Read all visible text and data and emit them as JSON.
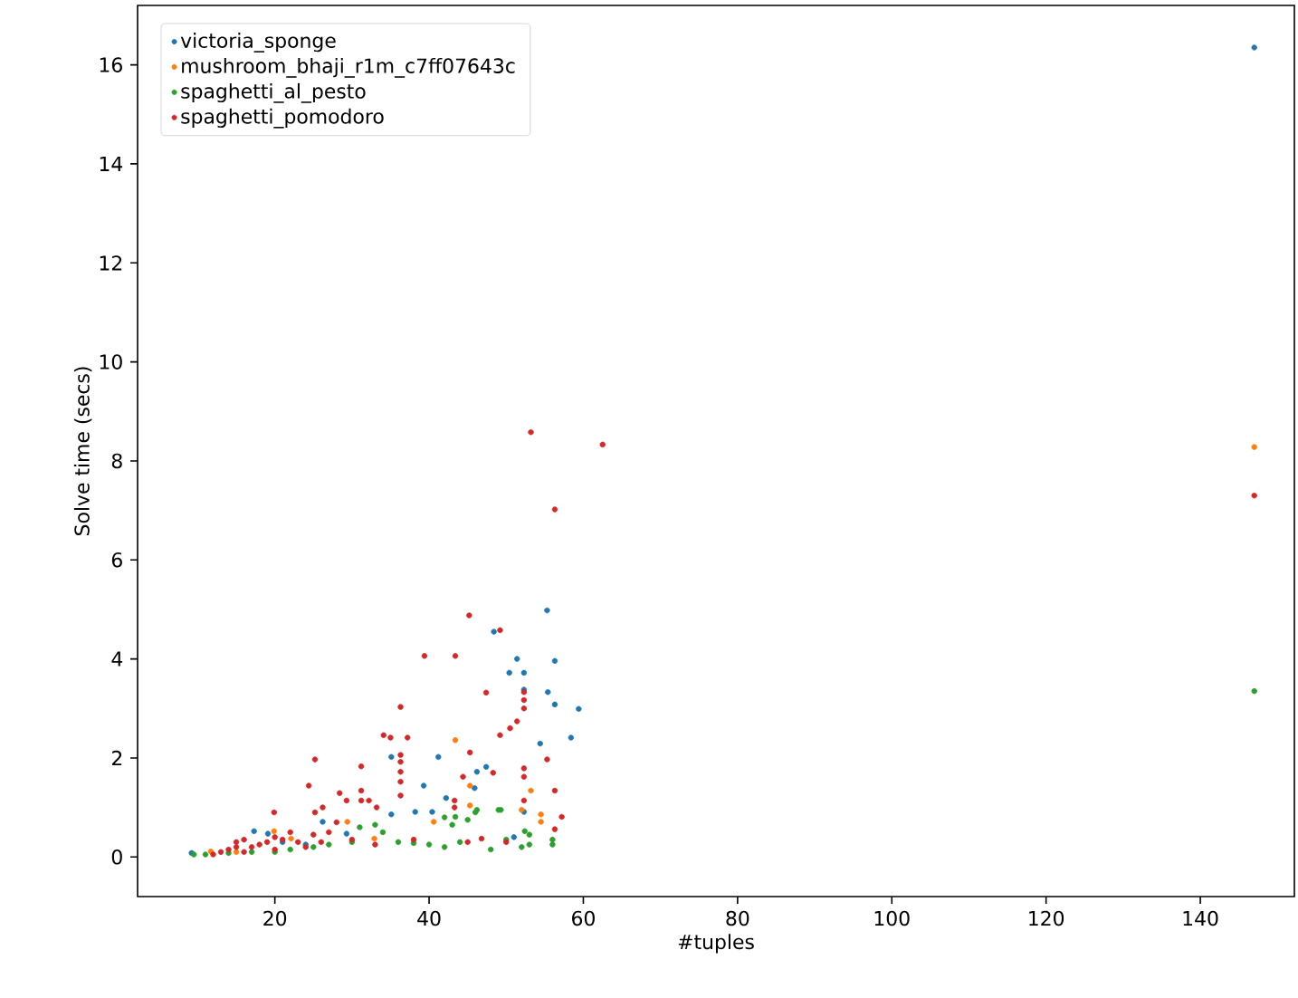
{
  "chart_data": {
    "type": "scatter",
    "xlabel": "#tuples",
    "ylabel": "Solve time (secs)",
    "xlim": [
      2.2,
      152.2
    ],
    "ylim": [
      -0.8,
      17.2
    ],
    "xticks": [
      20,
      40,
      60,
      80,
      100,
      120,
      140
    ],
    "yticks": [
      0,
      2,
      4,
      6,
      8,
      10,
      12,
      14,
      16
    ],
    "grid": false,
    "legend": "top left",
    "marker": "circle",
    "series": [
      {
        "name": "victoria_sponge",
        "color": "#1f77b4",
        "x": [
          147,
          55.3,
          48.4,
          51.4,
          56.3,
          50.4,
          52.3,
          52.3,
          55.4,
          56.3,
          59.4,
          58.4,
          54.4,
          41.2,
          35.1,
          47.4,
          46.2,
          39.3,
          45.9,
          42.2,
          35.1,
          40.4,
          38.2,
          52.3,
          26.2,
          17.3,
          19.1,
          29.3,
          9.2,
          21,
          24,
          51
        ],
        "values": [
          16.35,
          4.98,
          4.55,
          4.0,
          3.96,
          3.72,
          3.72,
          3.38,
          3.33,
          3.08,
          2.99,
          2.41,
          2.29,
          2.02,
          2.02,
          1.82,
          1.72,
          1.44,
          1.39,
          1.19,
          0.86,
          0.91,
          0.91,
          0.91,
          0.71,
          0.52,
          0.47,
          0.47,
          0.08,
          0.3,
          0.25,
          0.4
        ]
      },
      {
        "name": "mushroom_bhaji_r1m_c7ff07643c",
        "color": "#ff7f0e",
        "x": [
          147,
          43.4,
          45.3,
          53.2,
          54.5,
          54.5,
          45.3,
          29.4,
          19.9,
          22.1,
          32.9,
          11.7,
          40.6,
          15,
          52
        ],
        "values": [
          8.28,
          2.36,
          1.44,
          1.34,
          0.86,
          0.71,
          1.04,
          0.71,
          0.52,
          0.37,
          0.37,
          0.11,
          0.71,
          0.1,
          0.95
        ]
      },
      {
        "name": "spaghetti_al_pesto",
        "color": "#2ca02c",
        "x": [
          147,
          9.5,
          11,
          14,
          17,
          20,
          22,
          25,
          27,
          30,
          31,
          33,
          34,
          36,
          38,
          40,
          42,
          42,
          43,
          44,
          45,
          46,
          48,
          49,
          50,
          52,
          53,
          53,
          56,
          56,
          49.3,
          46.2,
          43.4,
          52.4
        ],
        "values": [
          3.35,
          0.05,
          0.05,
          0.08,
          0.1,
          0.1,
          0.15,
          0.2,
          0.25,
          0.3,
          0.6,
          0.65,
          0.5,
          0.3,
          0.28,
          0.25,
          0.2,
          0.8,
          0.65,
          0.3,
          0.75,
          0.9,
          0.15,
          0.95,
          0.35,
          0.2,
          0.45,
          0.25,
          0.25,
          0.35,
          0.95,
          0.95,
          0.81,
          0.52
        ]
      },
      {
        "name": "spaghetti_pomodoro",
        "color": "#d62728",
        "x": [
          147,
          53.2,
          62.5,
          56.3,
          45.2,
          49.2,
          39.4,
          43.4,
          47.4,
          36.3,
          52.3,
          52.3,
          52.3,
          51.4,
          50.5,
          49.2,
          34.1,
          35.0,
          37.2,
          45.3,
          36.3,
          36.3,
          36.3,
          36.3,
          36.3,
          25.2,
          31.2,
          44.4,
          48.3,
          55.3,
          24.4,
          31.2,
          52.3,
          52.3,
          56.3,
          28.4,
          29.3,
          31.2,
          32.2,
          19.9,
          26.2,
          25.2,
          33.2,
          43.3,
          43.3,
          52.3,
          57.2,
          56.3,
          46.8,
          12,
          13,
          14,
          15,
          15,
          16,
          16,
          17,
          18,
          19,
          20,
          20,
          21,
          22,
          23,
          24,
          25,
          26,
          27,
          28,
          30,
          33,
          38,
          45,
          50
        ],
        "values": [
          7.3,
          8.58,
          8.33,
          7.02,
          4.88,
          4.58,
          4.06,
          4.06,
          3.32,
          3.03,
          3.33,
          3.17,
          3.0,
          2.74,
          2.6,
          2.46,
          2.46,
          2.41,
          2.41,
          2.11,
          2.06,
          1.92,
          1.72,
          1.52,
          1.24,
          1.97,
          1.83,
          1.62,
          1.7,
          1.97,
          1.44,
          1.34,
          1.79,
          1.62,
          1.34,
          1.29,
          1.14,
          1.14,
          1.14,
          0.9,
          1.0,
          0.9,
          1.0,
          1.14,
          1.0,
          1.14,
          0.81,
          0.56,
          0.37,
          0.05,
          0.1,
          0.15,
          0.2,
          0.3,
          0.1,
          0.35,
          0.2,
          0.25,
          0.3,
          0.4,
          0.15,
          0.35,
          0.5,
          0.3,
          0.2,
          0.45,
          0.3,
          0.5,
          0.7,
          0.35,
          0.25,
          0.35,
          0.3,
          0.3
        ]
      }
    ]
  }
}
